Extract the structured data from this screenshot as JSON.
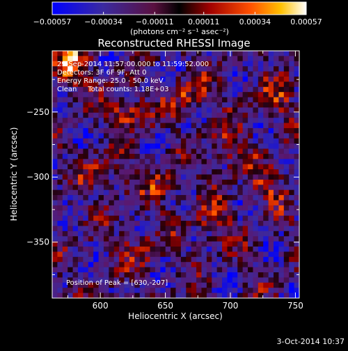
{
  "chart_data": {
    "type": "heatmap",
    "title": "Reconstructed RHESSI Image",
    "xlabel": "Heliocentric X (arcsec)",
    "ylabel": "Heliocentric Y (arcsec)",
    "x_range": [
      563,
      753
    ],
    "y_range": [
      -393,
      -203
    ],
    "x_ticks": [
      600,
      650,
      700,
      750
    ],
    "y_ticks": [
      -250,
      -300,
      -350
    ],
    "x_tick_labels": [
      "600",
      "650",
      "700",
      "750"
    ],
    "y_tick_labels": [
      "−250",
      "−300",
      "−350"
    ],
    "colorbar": {
      "range": [
        -0.00057,
        0.00057
      ],
      "ticks": [
        -0.00057,
        -0.00034,
        -0.00011,
        0.00011,
        0.00034,
        0.00057
      ],
      "tick_labels": [
        "−0.00057",
        "−0.00034",
        "−0.00011",
        "0.00011",
        "0.00034",
        "0.00057"
      ],
      "units": "(photons cm⁻² s⁻¹ asec⁻²)"
    },
    "annotations": [
      "29-Sep-2014 11:57:00.000 to 11:59:52.000",
      "Detectors: 3F 6F 9F, Att 0",
      "Energy Range: 25.0 - 50.0 keV",
      "Clean     Total counts: 1.18E+03"
    ],
    "peak_label": "Position of Peak = [630,-207]",
    "peak": [
      630,
      -207
    ]
  },
  "footer": {
    "timestamp": "3-Oct-2014 10:37"
  }
}
